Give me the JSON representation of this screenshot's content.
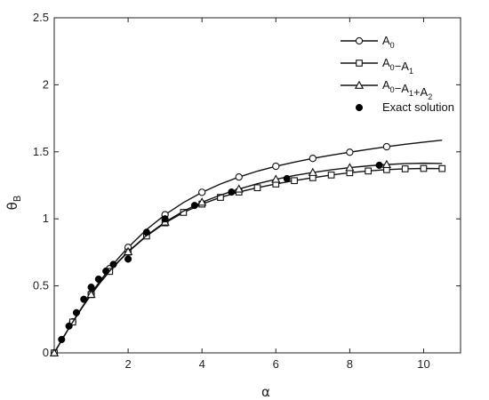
{
  "chart_data": {
    "type": "line",
    "xlabel": "α",
    "ylabel": "θ",
    "ylabel_sub": "B",
    "xlim": [
      0,
      11
    ],
    "ylim": [
      0,
      2.5
    ],
    "x_ticks": [
      {
        "value": 2,
        "label": "2"
      },
      {
        "value": 4,
        "label": "4"
      },
      {
        "value": 6,
        "label": "6"
      },
      {
        "value": 8,
        "label": "8"
      },
      {
        "value": 10,
        "label": "10"
      }
    ],
    "y_ticks": [
      {
        "value": 0,
        "label": "0"
      },
      {
        "value": 0.5,
        "label": "0.5"
      },
      {
        "value": 1,
        "label": "1"
      },
      {
        "value": 1.5,
        "label": "1.5"
      },
      {
        "value": 2,
        "label": "2"
      },
      {
        "value": 2.5,
        "label": "2.5"
      }
    ],
    "grid": false,
    "legend_position": "top-right",
    "series": [
      {
        "name": "A0",
        "legend_main": "A",
        "legend_sub": "0",
        "marker": "circle",
        "curve_x": [
          0,
          0.25,
          0.5,
          0.75,
          1,
          1.25,
          1.5,
          1.75,
          2,
          2.5,
          3,
          3.5,
          4,
          4.5,
          5,
          5.5,
          6,
          6.5,
          7,
          7.5,
          8,
          8.5,
          9,
          9.5,
          10,
          10.5
        ],
        "curve_y": [
          0,
          0.118,
          0.232,
          0.34,
          0.443,
          0.54,
          0.629,
          0.711,
          0.787,
          0.92,
          1.031,
          1.122,
          1.198,
          1.26,
          1.312,
          1.356,
          1.392,
          1.423,
          1.451,
          1.475,
          1.497,
          1.518,
          1.538,
          1.556,
          1.572,
          1.587
        ],
        "marker_x": [
          0,
          0.5,
          1,
          1.5,
          2,
          3,
          4,
          5,
          6,
          7,
          8,
          9
        ],
        "marker_y": [
          0,
          0.232,
          0.443,
          0.629,
          0.787,
          1.031,
          1.198,
          1.312,
          1.392,
          1.451,
          1.497,
          1.538
        ]
      },
      {
        "name": "A0-A1",
        "legend_main": "A",
        "legend_sub": "0",
        "legend_rest": [
          [
            "−A",
            "1"
          ]
        ],
        "marker": "square",
        "curve_x": [
          0,
          0.25,
          0.5,
          0.75,
          1,
          1.25,
          1.5,
          1.75,
          2,
          2.5,
          3,
          3.5,
          4,
          4.5,
          5,
          5.5,
          6,
          6.5,
          7,
          7.5,
          8,
          8.5,
          9,
          9.5,
          10,
          10.5
        ],
        "curve_y": [
          0,
          0.118,
          0.23,
          0.336,
          0.435,
          0.526,
          0.608,
          0.683,
          0.752,
          0.872,
          0.97,
          1.048,
          1.11,
          1.16,
          1.2,
          1.232,
          1.26,
          1.285,
          1.307,
          1.327,
          1.344,
          1.357,
          1.367,
          1.373,
          1.376,
          1.375
        ],
        "marker_x": [
          0,
          0.5,
          1,
          1.5,
          2,
          2.5,
          3,
          3.5,
          4,
          4.5,
          5,
          5.5,
          6,
          6.5,
          7,
          7.5,
          8,
          8.5,
          9,
          9.5,
          10,
          10.5
        ],
        "marker_y": [
          0,
          0.23,
          0.435,
          0.608,
          0.752,
          0.872,
          0.97,
          1.048,
          1.11,
          1.16,
          1.2,
          1.232,
          1.26,
          1.285,
          1.307,
          1.327,
          1.344,
          1.357,
          1.367,
          1.373,
          1.376,
          1.375
        ]
      },
      {
        "name": "A0-A1+A2",
        "legend_main": "A",
        "legend_sub": "0",
        "legend_rest": [
          [
            "−A",
            "1"
          ],
          [
            "+A",
            "2"
          ]
        ],
        "marker": "triangle",
        "curve_x": [
          0,
          0.25,
          0.5,
          0.75,
          1,
          1.25,
          1.5,
          1.75,
          2,
          2.5,
          3,
          3.5,
          4,
          4.5,
          5,
          5.5,
          6,
          6.5,
          7,
          7.5,
          8,
          8.5,
          9,
          9.5,
          10,
          10.5
        ],
        "curve_y": [
          0,
          0.118,
          0.23,
          0.336,
          0.436,
          0.528,
          0.611,
          0.686,
          0.755,
          0.876,
          0.976,
          1.058,
          1.124,
          1.177,
          1.222,
          1.262,
          1.295,
          1.323,
          1.346,
          1.366,
          1.382,
          1.395,
          1.405,
          1.412,
          1.415,
          1.413
        ],
        "marker_x": [
          0,
          1,
          2,
          3,
          4,
          5,
          6,
          7,
          8,
          9
        ],
        "marker_y": [
          0,
          0.436,
          0.755,
          0.976,
          1.124,
          1.222,
          1.295,
          1.346,
          1.382,
          1.405
        ]
      },
      {
        "name": "Exact solution",
        "legend_label": "Exact solution",
        "marker": "filled-circle",
        "curve_x": [],
        "curve_y": [],
        "marker_x": [
          0.2,
          0.4,
          0.6,
          0.8,
          1.0,
          1.2,
          1.4,
          1.6,
          2.0,
          2.5,
          3.0,
          3.8,
          4.8,
          6.3,
          8.8
        ],
        "marker_y": [
          0.1,
          0.2,
          0.3,
          0.4,
          0.49,
          0.55,
          0.61,
          0.66,
          0.7,
          0.9,
          1.0,
          1.1,
          1.2,
          1.3,
          1.4
        ]
      }
    ]
  }
}
